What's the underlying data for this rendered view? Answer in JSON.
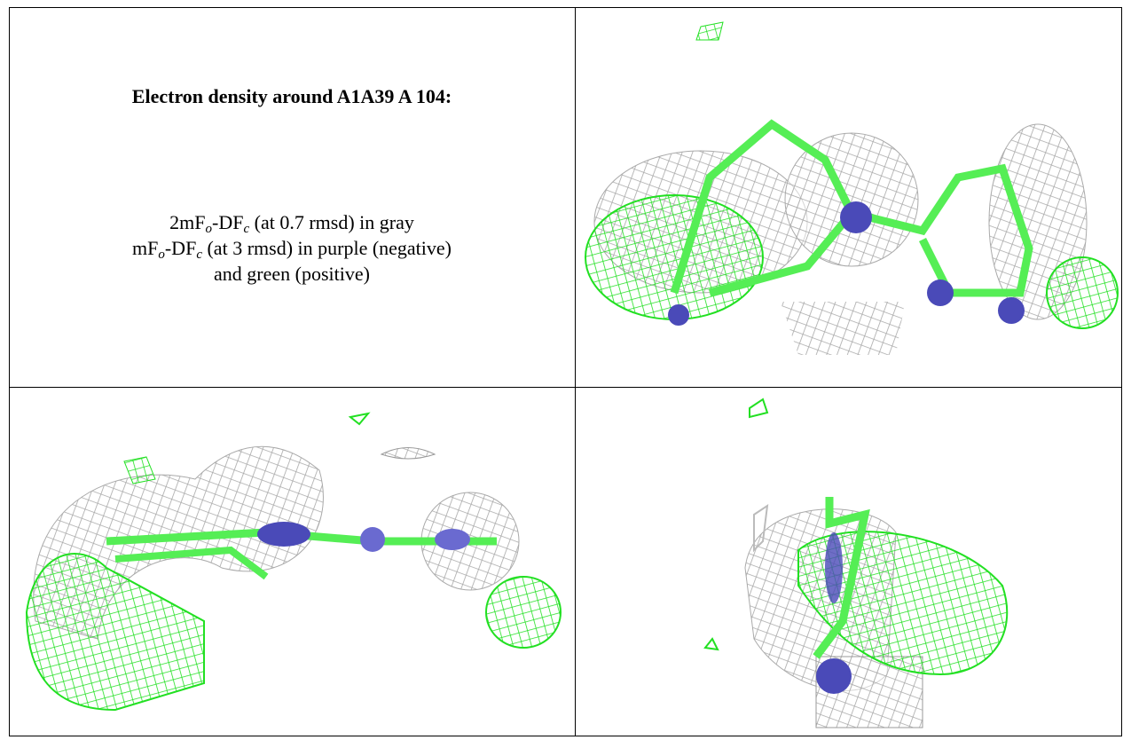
{
  "caption": {
    "title": "Electron density around A1A39 A 104:",
    "lines": [
      [
        "2mF",
        "o",
        "-DF",
        "c",
        " (at 0.7 rmsd) in gray"
      ],
      [
        "mF",
        "o",
        "-DF",
        "c",
        " (at 3 rmsd) in purple (negative)"
      ],
      [
        "and green (positive)"
      ]
    ]
  }
}
